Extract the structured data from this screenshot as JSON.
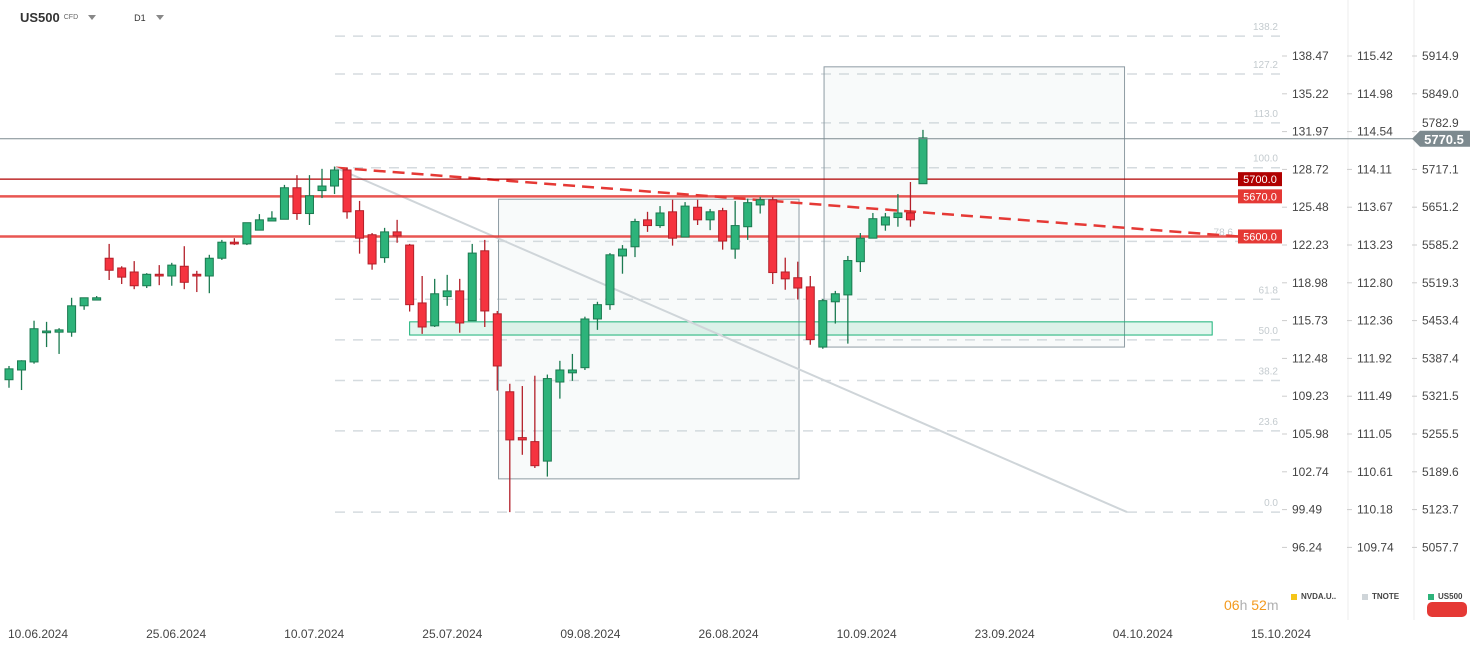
{
  "header": {
    "symbol": "US500",
    "instrument_type": "CFD",
    "timeframe": "D1"
  },
  "chart_data": {
    "type": "candlestick",
    "ohlc_columns": [
      "open",
      "high",
      "low",
      "close"
    ],
    "candles": [
      [
        5350,
        5374,
        5336,
        5369
      ],
      [
        5367,
        5384,
        5332,
        5383
      ],
      [
        5381,
        5453,
        5378,
        5439
      ],
      [
        5432,
        5451,
        5407,
        5435
      ],
      [
        5433,
        5440,
        5395,
        5437
      ],
      [
        5433,
        5493,
        5425,
        5479
      ],
      [
        5479,
        5493,
        5472,
        5493
      ],
      [
        5489,
        5496,
        5489,
        5493
      ],
      [
        5562,
        5587,
        5524,
        5541
      ],
      [
        5545,
        5548,
        5517,
        5529
      ],
      [
        5538,
        5557,
        5508,
        5514
      ],
      [
        5514,
        5536,
        5510,
        5534
      ],
      [
        5534,
        5550,
        5515,
        5531
      ],
      [
        5531,
        5554,
        5514,
        5550
      ],
      [
        5548,
        5583,
        5508,
        5520
      ],
      [
        5534,
        5540,
        5503,
        5531
      ],
      [
        5531,
        5568,
        5501,
        5562
      ],
      [
        5562,
        5594,
        5559,
        5590
      ],
      [
        5590,
        5597,
        5585,
        5587
      ],
      [
        5587,
        5624,
        5585,
        5624
      ],
      [
        5611,
        5639,
        5611,
        5629
      ],
      [
        5627,
        5644,
        5627,
        5632
      ],
      [
        5630,
        5690,
        5630,
        5685
      ],
      [
        5685,
        5707,
        5629,
        5640
      ],
      [
        5640,
        5707,
        5620,
        5671
      ],
      [
        5680,
        5718,
        5667,
        5688
      ],
      [
        5688,
        5722,
        5674,
        5716
      ],
      [
        5716,
        5720,
        5631,
        5643
      ],
      [
        5645,
        5662,
        5570,
        5597
      ],
      [
        5603,
        5606,
        5542,
        5552
      ],
      [
        5563,
        5615,
        5554,
        5608
      ],
      [
        5608,
        5629,
        5589,
        5601
      ],
      [
        5585,
        5587,
        5469,
        5481
      ],
      [
        5484,
        5531,
        5430,
        5442
      ],
      [
        5444,
        5526,
        5442,
        5500
      ],
      [
        5495,
        5533,
        5479,
        5505
      ],
      [
        5505,
        5526,
        5432,
        5449
      ],
      [
        5453,
        5587,
        5453,
        5571
      ],
      [
        5575,
        5594,
        5442,
        5470
      ],
      [
        5465,
        5470,
        5331,
        5374
      ],
      [
        5329,
        5343,
        5119,
        5245
      ],
      [
        5249,
        5339,
        5219,
        5245
      ],
      [
        5242,
        5357,
        5196,
        5200
      ],
      [
        5208,
        5359,
        5181,
        5352
      ],
      [
        5346,
        5383,
        5317,
        5367
      ],
      [
        5362,
        5395,
        5348,
        5367
      ],
      [
        5371,
        5460,
        5367,
        5456
      ],
      [
        5456,
        5486,
        5437,
        5481
      ],
      [
        5481,
        5571,
        5472,
        5568
      ],
      [
        5566,
        5585,
        5535,
        5578
      ],
      [
        5582,
        5631,
        5564,
        5626
      ],
      [
        5629,
        5643,
        5608,
        5619
      ],
      [
        5619,
        5653,
        5615,
        5641
      ],
      [
        5643,
        5664,
        5584,
        5597
      ],
      [
        5599,
        5660,
        5599,
        5653
      ],
      [
        5651,
        5664,
        5620,
        5629
      ],
      [
        5629,
        5648,
        5611,
        5643
      ],
      [
        5645,
        5650,
        5577,
        5592
      ],
      [
        5578,
        5662,
        5561,
        5619
      ],
      [
        5617,
        5666,
        5594,
        5659
      ],
      [
        5655,
        5669,
        5640,
        5664
      ],
      [
        5664,
        5669,
        5517,
        5537
      ],
      [
        5538,
        5563,
        5507,
        5526
      ],
      [
        5528,
        5556,
        5490,
        5510
      ],
      [
        5512,
        5531,
        5411,
        5420
      ],
      [
        5407,
        5491,
        5404,
        5488
      ],
      [
        5486,
        5505,
        5448,
        5500
      ],
      [
        5498,
        5566,
        5413,
        5558
      ],
      [
        5556,
        5606,
        5538,
        5597
      ],
      [
        5597,
        5641,
        5597,
        5631
      ],
      [
        5620,
        5641,
        5610,
        5634
      ],
      [
        5633,
        5674,
        5617,
        5641
      ],
      [
        5641,
        5695,
        5617,
        5629
      ],
      [
        5692,
        5786,
        5692,
        5772
      ]
    ],
    "x_tick_labels": [
      "10.06.2024",
      "25.06.2024",
      "10.07.2024",
      "25.07.2024",
      "09.08.2024",
      "26.08.2024",
      "10.09.2024",
      "23.09.2024",
      "04.10.2024",
      "15.10.2024"
    ],
    "y_axes": [
      {
        "labels": [
          "138.47",
          "135.22",
          "131.97",
          "128.72",
          "125.48",
          "122.23",
          "118.98",
          "115.73",
          "112.48",
          "109.23",
          "105.98",
          "102.74",
          "99.49",
          "96.24"
        ]
      },
      {
        "labels": [
          "115.42",
          "114.98",
          "114.54",
          "114.11",
          "113.67",
          "113.23",
          "112.80",
          "112.36",
          "111.92",
          "111.49",
          "111.05",
          "110.61",
          "110.18",
          "109.74"
        ]
      },
      {
        "labels": [
          "5914.9",
          "5849.0",
          "5782.9",
          "5717.1",
          "5651.2",
          "5585.2",
          "5519.3",
          "5453.4",
          "5387.4",
          "5321.5",
          "5255.5",
          "5189.6",
          "5123.7",
          "5057.7"
        ]
      }
    ],
    "price_range": [
      5057.7,
      5914.9
    ],
    "current_price": {
      "label": "5770.5",
      "value": 5770.5,
      "color": "#7d8a8f"
    },
    "horizontal_levels": [
      {
        "label": "5700.0",
        "value": 5700,
        "color": "#b00000"
      },
      {
        "label": "5670.0",
        "value": 5670,
        "color": "#e53935"
      },
      {
        "label": "5600.0",
        "value": 5600,
        "color": "#e53935"
      }
    ],
    "fibonacci": {
      "low": 5119,
      "high": 5720,
      "levels": [
        {
          "label": "138.2",
          "value": 138.2
        },
        {
          "label": "127.2",
          "value": 127.2
        },
        {
          "label": "113.0",
          "value": 113.0
        },
        {
          "label": "100.0",
          "value": 100.0
        },
        {
          "label": "78.6",
          "value": 78.6
        },
        {
          "label": "61.8",
          "value": 61.8
        },
        {
          "label": "50.0",
          "value": 50.0
        },
        {
          "label": "38.2",
          "value": 38.2
        },
        {
          "label": "23.6",
          "value": 23.6
        },
        {
          "label": "0.0",
          "value": 0.0
        }
      ]
    },
    "trendlines": [
      {
        "style": "dashed",
        "color": "#e53935",
        "from": [
          26.1,
          5720
        ],
        "to": [
          98.2,
          5600
        ]
      },
      {
        "style": "solid",
        "color": "#cfd5d9",
        "from": [
          26.1,
          5720
        ],
        "to": [
          89.3,
          5119
        ]
      }
    ],
    "rectangles": [
      {
        "from_bar": 39.1,
        "to_bar": 63.1,
        "top": 5665,
        "bottom": 5177,
        "color": "#8e9ca3"
      },
      {
        "from_bar": 65.1,
        "to_bar": 89.1,
        "top": 5896,
        "bottom": 5407,
        "color": "#8e9ca3"
      },
      {
        "from_bar": 32.0,
        "to_bar": 96.1,
        "top": 5451,
        "bottom": 5428,
        "color": "#19b277"
      }
    ],
    "colors": {
      "up": "#2db37a",
      "up_border": "#1b7a50",
      "down": "#f5333f",
      "down_border": "#b3202a"
    }
  },
  "footer": {
    "timer_hours": "06",
    "timer_h_unit": "h",
    "timer_minutes": "52",
    "timer_m_unit": "m",
    "legend": [
      {
        "label": "NVDA.U..",
        "color": "#f5c518"
      },
      {
        "label": "TNOTE",
        "color": "#cfd5d9"
      },
      {
        "label": "US500",
        "color": "#2db37a"
      }
    ]
  }
}
